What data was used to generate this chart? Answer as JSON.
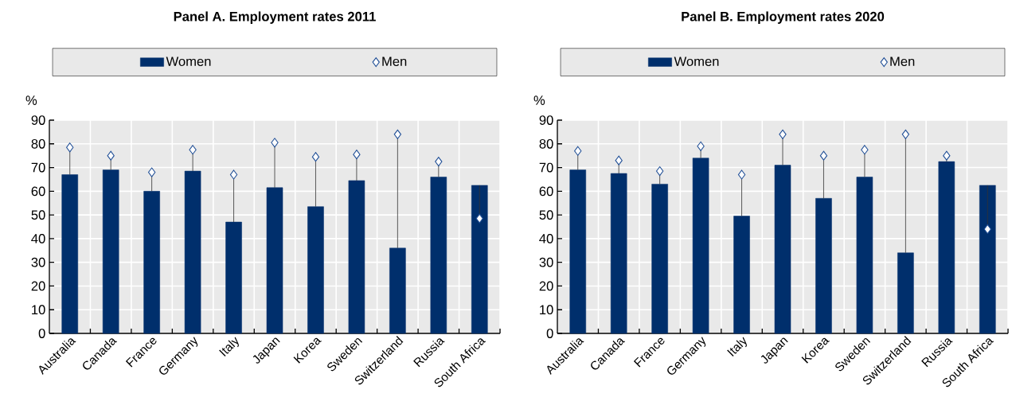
{
  "chart_data": [
    {
      "type": "bar",
      "title": "Panel A. Employment rates 2011",
      "ylabel": "%",
      "categories": [
        "Australia",
        "Canada",
        "France",
        "Germany",
        "Italy",
        "Japan",
        "Korea",
        "Sweden",
        "Switzerland",
        "Russia",
        "South Africa"
      ],
      "ylim": [
        0,
        90
      ],
      "yticks": [
        0,
        10,
        20,
        30,
        40,
        50,
        60,
        70,
        80,
        90
      ],
      "grid": true,
      "legend": "top",
      "series": [
        {
          "name": "Women",
          "color": "#002f6c",
          "values": [
            67,
            69,
            60,
            68.5,
            47,
            61.5,
            53.5,
            64.5,
            36,
            66,
            62.5
          ]
        },
        {
          "name": "Men",
          "type": "scatter",
          "marker": "diamond",
          "color": "#1f4e96",
          "values": [
            78.5,
            75,
            68,
            77.5,
            67,
            80.5,
            74.5,
            75.5,
            84,
            72.5,
            48.5
          ],
          "errors": [
            [
              67,
              78.5
            ],
            [
              69,
              75
            ],
            [
              60,
              68
            ],
            [
              68.5,
              77.5
            ],
            [
              47,
              67
            ],
            [
              61.5,
              80.5
            ],
            [
              53.5,
              74.5
            ],
            [
              64.5,
              75.5
            ],
            [
              36,
              84
            ],
            [
              66,
              72.5
            ],
            [
              48.5,
              62.5
            ]
          ]
        }
      ]
    },
    {
      "type": "bar",
      "title": "Panel B. Employment rates 2020",
      "ylabel": "%",
      "categories": [
        "Australia",
        "Canada",
        "France",
        "Germany",
        "Italy",
        "Japan",
        "Korea",
        "Sweden",
        "Switzerland",
        "Russia",
        "South Africa"
      ],
      "ylim": [
        0,
        90
      ],
      "yticks": [
        0,
        10,
        20,
        30,
        40,
        50,
        60,
        70,
        80,
        90
      ],
      "grid": true,
      "legend": "top",
      "series": [
        {
          "name": "Women",
          "color": "#002f6c",
          "values": [
            69,
            67.5,
            63,
            74,
            49.5,
            71,
            57,
            66,
            34,
            72.5,
            62.5
          ]
        },
        {
          "name": "Men",
          "type": "scatter",
          "marker": "diamond",
          "color": "#1f4e96",
          "values": [
            77,
            73,
            68.5,
            79,
            67,
            84,
            75,
            77.5,
            84,
            75,
            44
          ],
          "errors": [
            [
              69,
              77
            ],
            [
              67.5,
              73
            ],
            [
              63,
              68.5
            ],
            [
              74,
              79
            ],
            [
              49.5,
              67
            ],
            [
              71,
              84
            ],
            [
              57,
              75
            ],
            [
              66,
              77.5
            ],
            [
              34,
              84
            ],
            [
              72.5,
              75
            ],
            [
              44,
              62.5
            ]
          ]
        }
      ]
    }
  ]
}
